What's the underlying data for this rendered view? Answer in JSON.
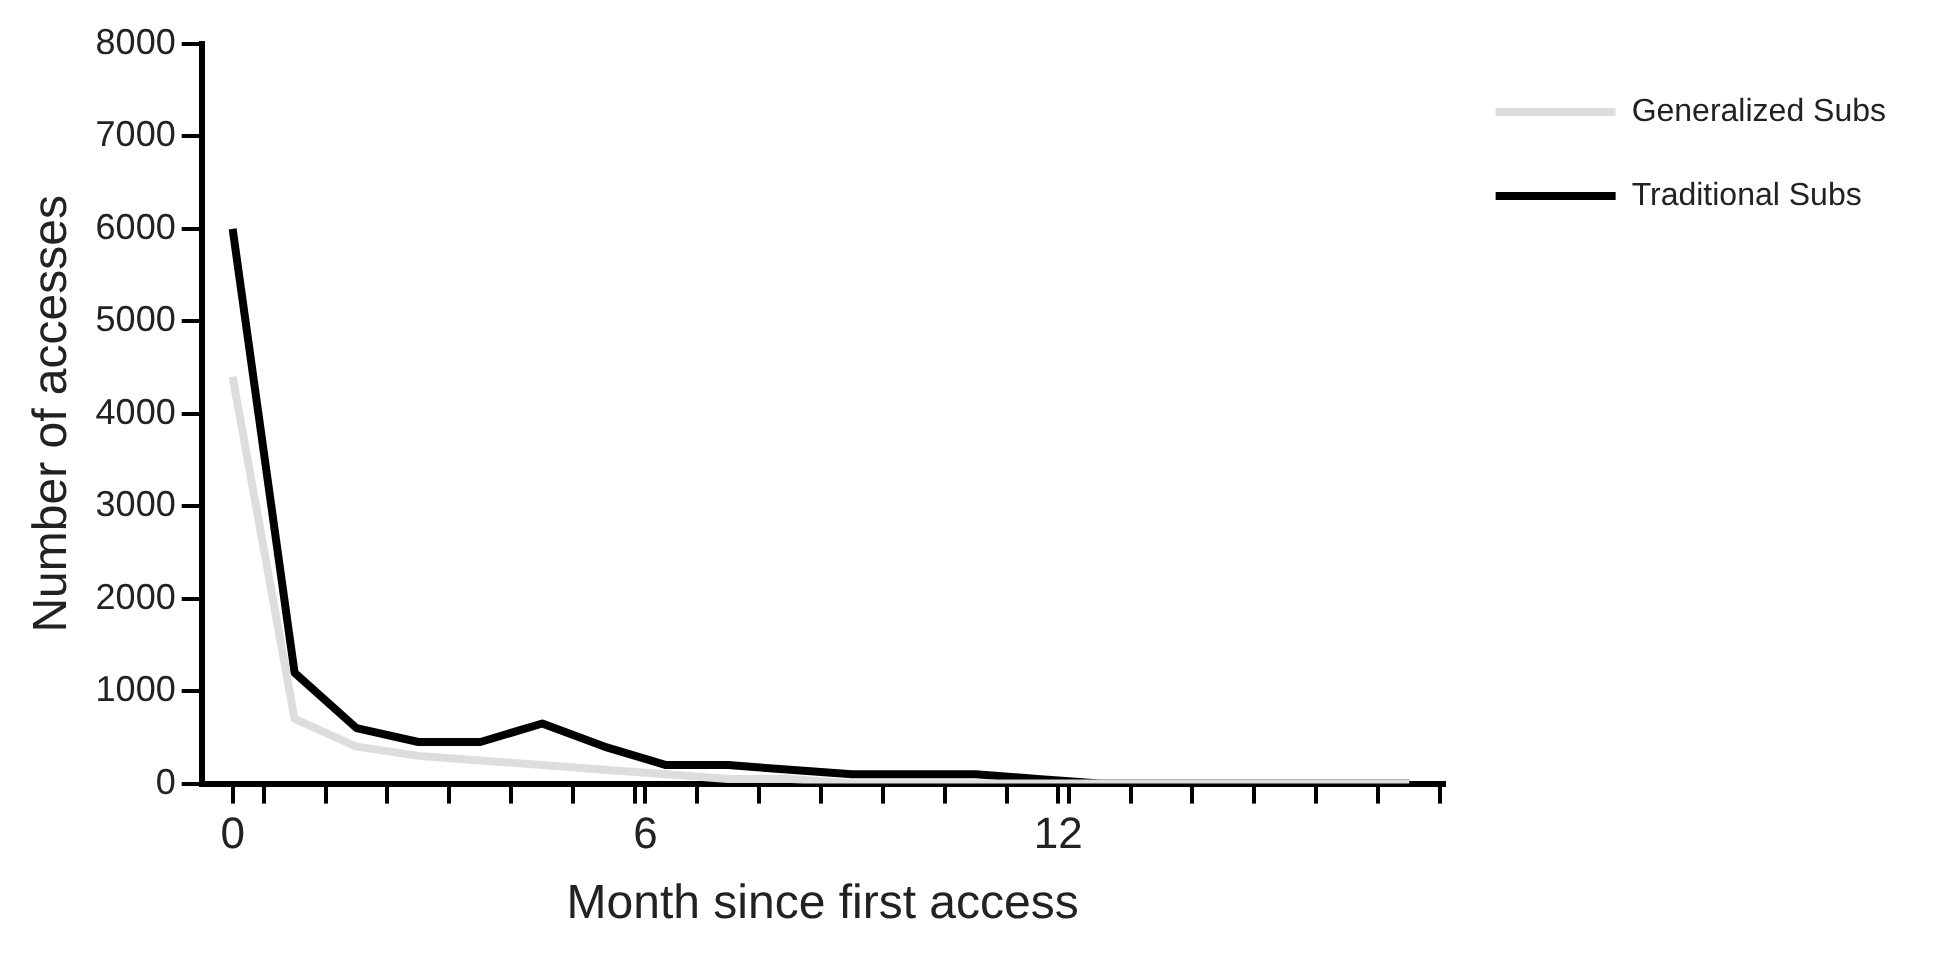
{
  "chart_data": {
    "type": "line",
    "xlabel": "Month since first access",
    "ylabel": "Number of accesses",
    "x": [
      0,
      0.9,
      1.8,
      2.7,
      3.6,
      4.5,
      5.4,
      6.3,
      7.2,
      8.1,
      9,
      9.9,
      10.8,
      11.7,
      12.6,
      13.5,
      14.4,
      15.3,
      16.2,
      17.1
    ],
    "series": [
      {
        "name": "Generalized Subs",
        "color": "#dddddd",
        "values": [
          4400,
          700,
          400,
          300,
          250,
          200,
          150,
          100,
          50,
          50,
          0,
          0,
          0,
          0,
          0,
          0,
          0,
          0,
          0,
          0
        ]
      },
      {
        "name": "Traditional Subs",
        "color": "#000000",
        "values": [
          6000,
          1200,
          600,
          450,
          450,
          650,
          400,
          200,
          200,
          150,
          100,
          100,
          100,
          50,
          0,
          0,
          0,
          0,
          0,
          0
        ]
      }
    ],
    "xlim": [
      -0.45,
      17.6
    ],
    "xticks": [
      0,
      6,
      12,
      {
        "value": 0.45,
        "label": null
      },
      {
        "value": 1.35,
        "label": null
      },
      {
        "value": 2.25,
        "label": null
      },
      {
        "value": 3.15,
        "label": null
      },
      {
        "value": 4.05,
        "label": null
      },
      {
        "value": 4.95,
        "label": null
      },
      {
        "value": 5.85,
        "label": null
      },
      {
        "value": 6.75,
        "label": null
      },
      {
        "value": 7.65,
        "label": null
      },
      {
        "value": 8.55,
        "label": null
      },
      {
        "value": 9.45,
        "label": null
      },
      {
        "value": 10.35,
        "label": null
      },
      {
        "value": 11.25,
        "label": null
      },
      {
        "value": 12.15,
        "label": null
      },
      {
        "value": 13.05,
        "label": null
      },
      {
        "value": 13.95,
        "label": null
      },
      {
        "value": 14.85,
        "label": null
      },
      {
        "value": 15.75,
        "label": null
      },
      {
        "value": 16.65,
        "label": null
      },
      {
        "value": 17.55,
        "label": null
      }
    ],
    "ylim": [
      0,
      8000
    ],
    "yticks": [
      0,
      1000,
      2000,
      3000,
      4000,
      5000,
      6000,
      7000,
      8000
    ],
    "grid": false,
    "legend": "top right",
    "marker": "none",
    "line_style": "solid"
  }
}
